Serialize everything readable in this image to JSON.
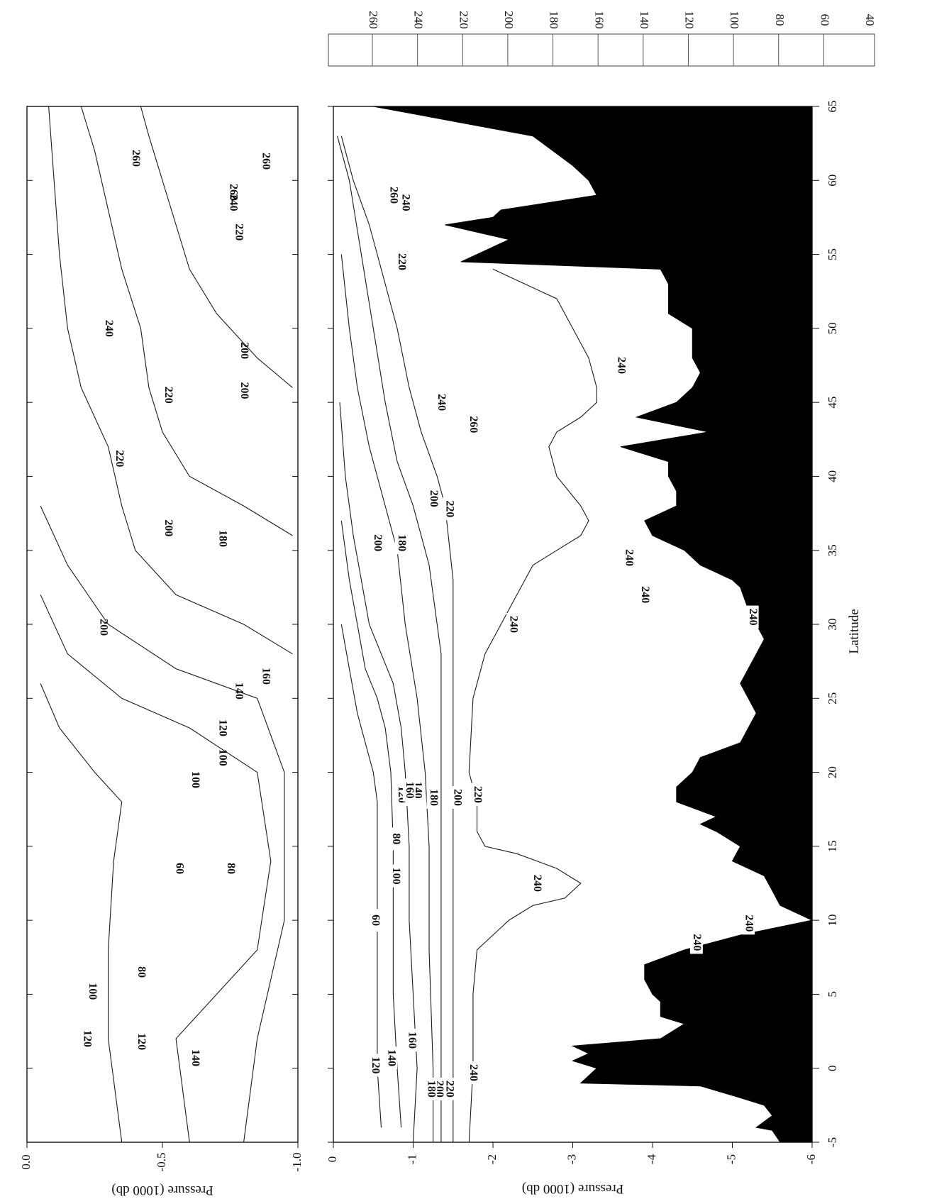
{
  "chart_data": [
    {
      "id": "upper-panel",
      "type": "contour",
      "title": "",
      "xlabel": "",
      "ylabel": "Pressure (1000 db)",
      "xlim": [
        -5,
        65
      ],
      "ylim": [
        0.0,
        -1.0
      ],
      "x_ticks": [
        -5,
        0,
        5,
        10,
        15,
        20,
        25,
        30,
        35,
        40,
        45,
        50,
        55,
        60,
        65
      ],
      "y_ticks": [
        0.0,
        -0.5,
        -1.0
      ],
      "y_tick_labels": [
        "0.0",
        "-0.5",
        "-1.0"
      ],
      "contour_labels": [
        {
          "text": "140",
          "x": 0.7,
          "y": -0.62
        },
        {
          "text": "120",
          "x": 1.8,
          "y": -0.42
        },
        {
          "text": "120",
          "x": 2.0,
          "y": -0.22
        },
        {
          "text": "100",
          "x": 5.2,
          "y": -0.24
        },
        {
          "text": "80",
          "x": 6.5,
          "y": -0.42
        },
        {
          "text": "60",
          "x": 13.5,
          "y": -0.56
        },
        {
          "text": "80",
          "x": 13.5,
          "y": -0.75
        },
        {
          "text": "100",
          "x": 19.5,
          "y": -0.62
        },
        {
          "text": "100",
          "x": 21.0,
          "y": -0.72
        },
        {
          "text": "120",
          "x": 23.0,
          "y": -0.72
        },
        {
          "text": "140",
          "x": 25.5,
          "y": -0.78
        },
        {
          "text": "160",
          "x": 26.5,
          "y": -0.88
        },
        {
          "text": "200",
          "x": 29.8,
          "y": -0.28
        },
        {
          "text": "180",
          "x": 35.8,
          "y": -0.72
        },
        {
          "text": "200",
          "x": 36.5,
          "y": -0.52
        },
        {
          "text": "220",
          "x": 41.2,
          "y": -0.34
        },
        {
          "text": "220",
          "x": 45.5,
          "y": -0.52
        },
        {
          "text": "200",
          "x": 45.8,
          "y": -0.8
        },
        {
          "text": "200",
          "x": 48.5,
          "y": -0.8
        },
        {
          "text": "240",
          "x": 50.0,
          "y": -0.3
        },
        {
          "text": "220",
          "x": 56.5,
          "y": -0.78
        },
        {
          "text": "240",
          "x": 58.5,
          "y": -0.76
        },
        {
          "text": "260",
          "x": 59.2,
          "y": -0.76
        },
        {
          "text": "260",
          "x": 61.5,
          "y": -0.4
        },
        {
          "text": "260",
          "x": 61.3,
          "y": -0.88
        }
      ]
    },
    {
      "id": "lower-panel",
      "type": "contour",
      "title": "",
      "xlabel": "Latitude",
      "ylabel": "Pressure (1000 db)",
      "xlim": [
        -5,
        65
      ],
      "ylim": [
        0,
        -6
      ],
      "x_ticks": [
        -5,
        0,
        5,
        10,
        15,
        20,
        25,
        30,
        35,
        40,
        45,
        50,
        55,
        60,
        65
      ],
      "x_tick_labels": [
        "-5",
        "0",
        "5",
        "10",
        "15",
        "20",
        "25",
        "30",
        "35",
        "40",
        "45",
        "50",
        "55",
        "60",
        "65"
      ],
      "y_ticks": [
        0,
        -1,
        -2,
        -3,
        -4,
        -5,
        -6
      ],
      "y_tick_labels": [
        "0",
        "-1",
        "-2",
        "-3",
        "-4",
        "-5",
        "-6"
      ],
      "bottom_topography": [
        [
          -5,
          -5.6
        ],
        [
          -4.2,
          -5.5
        ],
        [
          -4,
          -5.3
        ],
        [
          -3.2,
          -5.5
        ],
        [
          -2.5,
          -5.4
        ],
        [
          -2,
          -5.1
        ],
        [
          -1.2,
          -4.6
        ],
        [
          -1,
          -3.1
        ],
        [
          0,
          -3.3
        ],
        [
          0.5,
          -3.0
        ],
        [
          1,
          -3.2
        ],
        [
          1.5,
          -3.0
        ],
        [
          2,
          -4.1
        ],
        [
          3,
          -4.4
        ],
        [
          3.5,
          -4.1
        ],
        [
          4.5,
          -4.1
        ],
        [
          5,
          -4.0
        ],
        [
          6,
          -3.9
        ],
        [
          7,
          -3.9
        ],
        [
          8,
          -4.4
        ],
        [
          9,
          -5.1
        ],
        [
          10,
          -6.0
        ],
        [
          10.5,
          -5.8
        ],
        [
          11,
          -5.6
        ],
        [
          12,
          -5.5
        ],
        [
          13,
          -5.4
        ],
        [
          14,
          -5.0
        ],
        [
          15,
          -5.1
        ],
        [
          16,
          -4.8
        ],
        [
          16.5,
          -4.6
        ],
        [
          17,
          -4.8
        ],
        [
          18,
          -4.3
        ],
        [
          19,
          -4.3
        ],
        [
          20,
          -4.5
        ],
        [
          21,
          -4.6
        ],
        [
          22,
          -5.1
        ],
        [
          23,
          -5.2
        ],
        [
          24,
          -5.3
        ],
        [
          26,
          -5.1
        ],
        [
          28,
          -5.3
        ],
        [
          29,
          -5.4
        ],
        [
          30,
          -5.3
        ],
        [
          31,
          -5.2
        ],
        [
          32.5,
          -5.1
        ],
        [
          33,
          -5.0
        ],
        [
          34,
          -4.6
        ],
        [
          35,
          -4.4
        ],
        [
          36,
          -4.0
        ],
        [
          37,
          -3.9
        ],
        [
          38,
          -4.3
        ],
        [
          39,
          -4.3
        ],
        [
          40,
          -4.2
        ],
        [
          41,
          -4.2
        ],
        [
          42,
          -3.6
        ],
        [
          43,
          -4.7
        ],
        [
          44,
          -3.8
        ],
        [
          45,
          -4.3
        ],
        [
          46,
          -4.5
        ],
        [
          47,
          -4.6
        ],
        [
          48,
          -4.5
        ],
        [
          49,
          -4.5
        ],
        [
          50,
          -4.5
        ],
        [
          51,
          -4.2
        ],
        [
          52,
          -4.2
        ],
        [
          53,
          -4.2
        ],
        [
          54,
          -4.1
        ],
        [
          54.5,
          -1.6
        ],
        [
          55,
          -1.8
        ],
        [
          56,
          -2.2
        ],
        [
          57,
          -1.4
        ],
        [
          57.5,
          -2.0
        ],
        [
          58,
          -2.1
        ],
        [
          59,
          -3.3
        ],
        [
          60,
          -3.2
        ],
        [
          61,
          -3.0
        ],
        [
          63,
          -2.5
        ],
        [
          64,
          -1.5
        ],
        [
          64.5,
          -1.0
        ],
        [
          65,
          -0.5
        ]
      ],
      "contours": [
        {
          "level": 240,
          "points": [
            [
              -5,
              -1.7
            ],
            [
              0,
              -1.75
            ],
            [
              5,
              -1.75
            ],
            [
              8,
              -1.8
            ],
            [
              9,
              -2.0
            ],
            [
              10,
              -2.2
            ],
            [
              11,
              -2.5
            ],
            [
              11.5,
              -2.9
            ],
            [
              12.5,
              -3.1
            ],
            [
              13.5,
              -2.8
            ],
            [
              14.5,
              -2.3
            ],
            [
              15,
              -1.9
            ],
            [
              16,
              -1.8
            ],
            [
              18,
              -1.8
            ],
            [
              20,
              -1.7
            ],
            [
              25,
              -1.75
            ],
            [
              28,
              -1.9
            ],
            [
              30,
              -2.1
            ],
            [
              32,
              -2.3
            ],
            [
              34,
              -2.5
            ],
            [
              35,
              -2.8
            ],
            [
              36,
              -3.1
            ],
            [
              37,
              -3.2
            ],
            [
              38,
              -3.1
            ],
            [
              40,
              -2.8
            ],
            [
              42,
              -2.7
            ],
            [
              43,
              -2.8
            ],
            [
              44,
              -3.1
            ],
            [
              45,
              -3.3
            ],
            [
              46,
              -3.3
            ],
            [
              48,
              -3.2
            ],
            [
              50,
              -3.0
            ],
            [
              52,
              -2.8
            ],
            [
              53,
              -2.4
            ],
            [
              54,
              -2.0
            ]
          ]
        },
        {
          "level": 220,
          "points": [
            [
              -5,
              -1.5
            ],
            [
              0,
              -1.5
            ],
            [
              10,
              -1.5
            ],
            [
              20,
              -1.5
            ],
            [
              28,
              -1.5
            ],
            [
              33,
              -1.5
            ],
            [
              38,
              -1.4
            ],
            [
              40,
              -1.3
            ],
            [
              43,
              -1.1
            ],
            [
              46,
              -0.95
            ],
            [
              50,
              -0.8
            ],
            [
              54,
              -0.6
            ],
            [
              57,
              -0.45
            ],
            [
              60,
              -0.25
            ],
            [
              63,
              -0.1
            ]
          ]
        },
        {
          "level": 200,
          "points": [
            [
              -5,
              -1.35
            ],
            [
              0,
              -1.35
            ],
            [
              10,
              -1.35
            ],
            [
              20,
              -1.35
            ],
            [
              28,
              -1.35
            ],
            [
              34,
              -1.2
            ],
            [
              38,
              -1.0
            ],
            [
              41,
              -0.8
            ],
            [
              45,
              -0.65
            ],
            [
              50,
              -0.5
            ],
            [
              55,
              -0.35
            ],
            [
              60,
              -0.2
            ],
            [
              63,
              -0.05
            ]
          ]
        },
        {
          "level": 180,
          "points": [
            [
              -5,
              -1.25
            ],
            [
              0,
              -1.25
            ],
            [
              8,
              -1.2
            ],
            [
              15,
              -1.2
            ],
            [
              20,
              -1.15
            ],
            [
              25,
              -1.05
            ],
            [
              30,
              -0.9
            ],
            [
              35,
              -0.8
            ],
            [
              38,
              -0.65
            ],
            [
              42,
              -0.45
            ],
            [
              46,
              -0.3
            ],
            [
              50,
              -0.2
            ],
            [
              55,
              -0.1
            ]
          ]
        },
        {
          "level": 160,
          "points": [
            [
              -5,
              -1.0
            ],
            [
              0,
              -1.05
            ],
            [
              5,
              -1.0
            ],
            [
              10,
              -0.95
            ],
            [
              15,
              -0.95
            ],
            [
              20,
              -0.9
            ],
            [
              23,
              -0.85
            ],
            [
              26,
              -0.75
            ],
            [
              28,
              -0.6
            ],
            [
              30,
              -0.45
            ],
            [
              33,
              -0.35
            ],
            [
              36,
              -0.25
            ],
            [
              40,
              -0.15
            ],
            [
              45,
              -0.08
            ]
          ]
        },
        {
          "level": 140,
          "points": [
            [
              -4,
              -0.85
            ],
            [
              0,
              -0.8
            ],
            [
              5,
              -0.75
            ],
            [
              10,
              -0.75
            ],
            [
              15,
              -0.75
            ],
            [
              20,
              -0.72
            ],
            [
              23,
              -0.65
            ],
            [
              25,
              -0.55
            ],
            [
              27,
              -0.4
            ],
            [
              30,
              -0.3
            ],
            [
              33,
              -0.2
            ],
            [
              37,
              -0.1
            ]
          ]
        },
        {
          "level": 120,
          "points": [
            [
              -4,
              -0.6
            ],
            [
              0,
              -0.55
            ],
            [
              5,
              -0.55
            ],
            [
              10,
              -0.55
            ],
            [
              15,
              -0.55
            ],
            [
              18,
              -0.55
            ],
            [
              20,
              -0.5
            ],
            [
              22,
              -0.4
            ],
            [
              24,
              -0.3
            ],
            [
              27,
              -0.2
            ],
            [
              30,
              -0.1
            ]
          ]
        }
      ],
      "contour_labels": [
        {
          "text": "240",
          "x": -0.3,
          "y": -1.75
        },
        {
          "text": "220",
          "x": -1.4,
          "y": -1.45
        },
        {
          "text": "200",
          "x": -1.4,
          "y": -1.32
        },
        {
          "text": "180",
          "x": -1.4,
          "y": -1.22
        },
        {
          "text": "160",
          "x": 1.9,
          "y": -0.98
        },
        {
          "text": "140",
          "x": 0.7,
          "y": -0.72
        },
        {
          "text": "120",
          "x": 0.2,
          "y": -0.52
        },
        {
          "text": "60",
          "x": 10.0,
          "y": -0.52
        },
        {
          "text": "100",
          "x": 13.0,
          "y": -0.78
        },
        {
          "text": "80",
          "x": 15.5,
          "y": -0.78
        },
        {
          "text": "120",
          "x": 18.5,
          "y": -0.85
        },
        {
          "text": "140",
          "x": 18.8,
          "y": -1.05
        },
        {
          "text": "160",
          "x": 18.8,
          "y": -0.95
        },
        {
          "text": "180",
          "x": 18.3,
          "y": -1.25
        },
        {
          "text": "200",
          "x": 18.3,
          "y": -1.55
        },
        {
          "text": "220",
          "x": 18.5,
          "y": -1.8
        },
        {
          "text": "240",
          "x": 12.5,
          "y": -2.55
        },
        {
          "text": "240",
          "x": 8.5,
          "y": -4.55
        },
        {
          "text": "240",
          "x": 9.8,
          "y": -5.2
        },
        {
          "text": "240",
          "x": 30.0,
          "y": -2.25
        },
        {
          "text": "240",
          "x": 34.5,
          "y": -3.7
        },
        {
          "text": "240",
          "x": 32.0,
          "y": -3.9
        },
        {
          "text": "240",
          "x": 30.5,
          "y": -5.25
        },
        {
          "text": "200",
          "x": 35.5,
          "y": -0.55
        },
        {
          "text": "180",
          "x": 35.5,
          "y": -0.85
        },
        {
          "text": "200",
          "x": 38.5,
          "y": -1.25
        },
        {
          "text": "220",
          "x": 37.8,
          "y": -1.45
        },
        {
          "text": "240",
          "x": 45.0,
          "y": -1.35
        },
        {
          "text": "260",
          "x": 43.5,
          "y": -1.75
        },
        {
          "text": "240",
          "x": 47.5,
          "y": -3.6
        },
        {
          "text": "220",
          "x": 54.5,
          "y": -0.85
        },
        {
          "text": "260",
          "x": 59.0,
          "y": -0.75
        },
        {
          "text": "240",
          "x": 58.5,
          "y": -0.9
        }
      ]
    },
    {
      "id": "scale-bar",
      "type": "colorbar",
      "ticks": [
        "260",
        "240",
        "220",
        "200",
        "180",
        "160",
        "140",
        "120",
        "100",
        "80",
        "60",
        "40"
      ]
    }
  ]
}
